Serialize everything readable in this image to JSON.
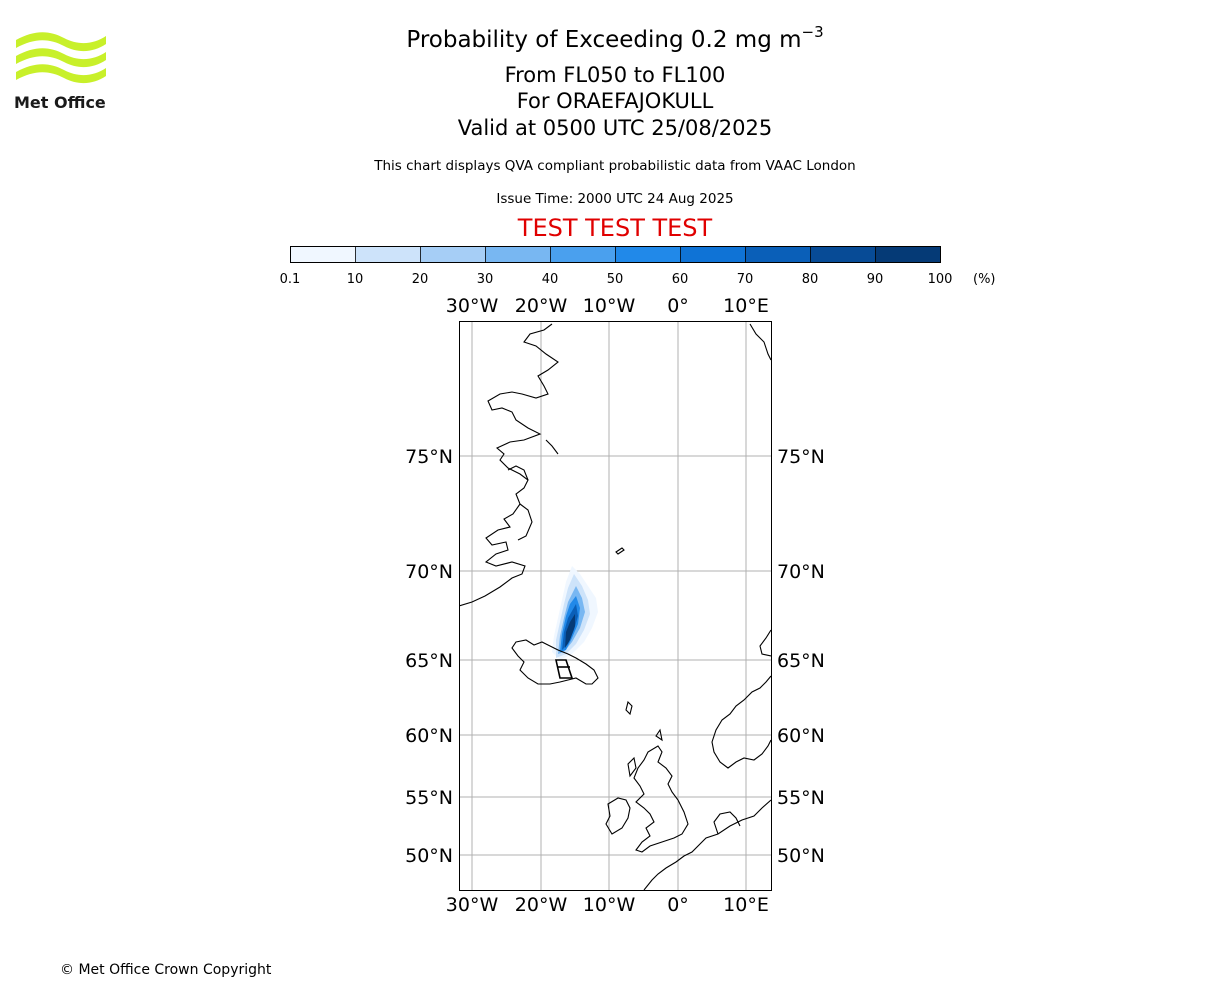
{
  "logo": {
    "text": "Met Office",
    "color": "#c8f02a"
  },
  "title": {
    "line1_prefix": "Probability of Exceeding 0.2 mg m",
    "line1_exponent": "−3",
    "line2": "From FL050 to FL100",
    "line3": "For ORAEFAJOKULL",
    "line4": "Valid at 0500 UTC 25/08/2025"
  },
  "subtitle": "This chart displays QVA compliant probabilistic data from VAAC London",
  "issue_time": "Issue Time: 2000 UTC 24 Aug 2025",
  "test_banner": "TEST TEST TEST",
  "colorbar": {
    "ticks": [
      "0.1",
      "10",
      "20",
      "30",
      "40",
      "50",
      "60",
      "70",
      "80",
      "90",
      "100"
    ],
    "unit": "(%)",
    "colors": [
      "#f0f7ff",
      "#cde3fa",
      "#a6cef6",
      "#78b7f2",
      "#4aa0ee",
      "#2189e9",
      "#0f73d6",
      "#0a5fb8",
      "#074b96",
      "#053a76",
      "#032c5c"
    ]
  },
  "map": {
    "lon_labels": [
      "30°W",
      "20°W",
      "10°W",
      "0°",
      "10°E"
    ],
    "lat_labels": [
      "75°N",
      "70°N",
      "65°N",
      "60°N",
      "55°N",
      "50°N"
    ],
    "grid_color": "#b0b0b0",
    "volcano": "ORAEFAJOKULL"
  },
  "footer": {
    "copyright": "© Met Office Crown Copyright"
  }
}
